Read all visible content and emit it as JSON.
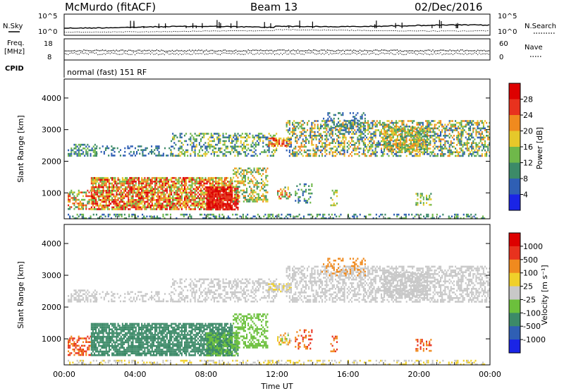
{
  "header": {
    "station": "McMurdo (fitACF)",
    "beam": "Beam 13",
    "date": "02/Dec/2016"
  },
  "status_panel": {
    "left_label_top": "N.Sky",
    "left_label_freq_1": "Freq.",
    "left_label_freq_2": "[MHz]",
    "left_label_cpid": "CPID",
    "right_label_top": "N.Search",
    "right_label_nave": "Nave",
    "noise_ticks": [
      "10^5",
      "10^0"
    ],
    "freq_ticks": [
      "18",
      "8"
    ],
    "nave_ticks": [
      "60",
      "0"
    ],
    "cpid_text": "normal (fast) 151 RF"
  },
  "chart_data": [
    {
      "type": "heatmap",
      "title": "",
      "ylabel": "Slant Range [km]",
      "xlabel": "",
      "ylim": [
        180,
        4600
      ],
      "yticks": [
        "1000",
        "2000",
        "3000",
        "4000"
      ],
      "colorbar": {
        "label": "Power [dB]",
        "ticks": [
          "4",
          "8",
          "12",
          "16",
          "20",
          "24",
          "28"
        ],
        "colors": [
          "#1a24e6",
          "#2f5fb4",
          "#3c8a68",
          "#6fb84a",
          "#e6c82a",
          "#f08a1e",
          "#e8321e",
          "#dd0000"
        ]
      }
    },
    {
      "type": "heatmap",
      "title": "",
      "ylabel": "Slant Range [km]",
      "xlabel": "Time UT",
      "ylim": [
        180,
        4600
      ],
      "yticks": [
        "1000",
        "2000",
        "3000",
        "4000"
      ],
      "xticks": [
        "00:00",
        "04:00",
        "08:00",
        "12:00",
        "16:00",
        "20:00",
        "00:00"
      ],
      "colorbar": {
        "label": "Velocity [m s⁻¹]",
        "ticks": [
          "1000",
          "500",
          "100",
          "25",
          "-25",
          "-100",
          "-500",
          "-1000"
        ],
        "colors": [
          "#1a24e6",
          "#2f5fb4",
          "#3c8a68",
          "#6cc03c",
          "#c8c8c8",
          "#f0d02a",
          "#f08a1e",
          "#e8321e",
          "#dd0000"
        ]
      }
    }
  ]
}
